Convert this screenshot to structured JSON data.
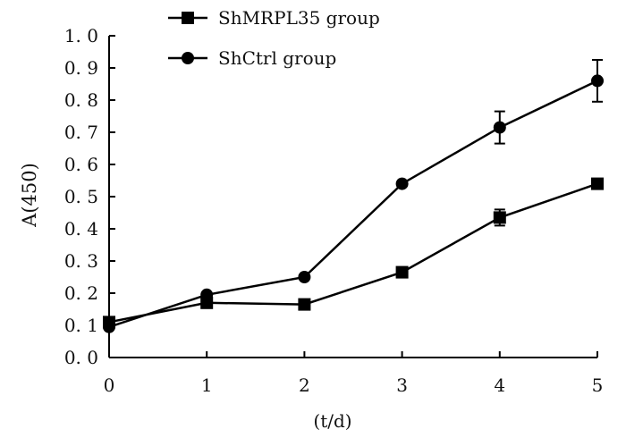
{
  "chart_data": {
    "type": "line",
    "title": "",
    "xlabel": "(t/d)",
    "ylabel": "A(450)",
    "x": [
      0,
      1,
      2,
      3,
      4,
      5
    ],
    "xlim": [
      0,
      5
    ],
    "ylim": [
      0.0,
      1.0
    ],
    "x_ticks": [
      "0",
      "1",
      "2",
      "3",
      "4",
      "5"
    ],
    "y_ticks": [
      "0. 0",
      "0. 1",
      "0. 2",
      "0. 3",
      "0. 4",
      "0. 5",
      "0. 6",
      "0. 7",
      "0. 8",
      "0. 9",
      "1. 0"
    ],
    "grid": false,
    "legend_position": "top-left",
    "series": [
      {
        "name": "ShMRPL35 group",
        "marker": "square",
        "color": "#000000",
        "values": [
          0.11,
          0.17,
          0.165,
          0.265,
          0.435,
          0.54
        ],
        "errors": [
          0.008,
          0.01,
          0.01,
          0.01,
          0.025,
          0.012
        ]
      },
      {
        "name": "ShCtrl group",
        "marker": "circle",
        "color": "#000000",
        "values": [
          0.095,
          0.195,
          0.25,
          0.54,
          0.715,
          0.86
        ],
        "errors": [
          0.008,
          0.01,
          0.01,
          0.01,
          0.05,
          0.065
        ]
      }
    ]
  }
}
